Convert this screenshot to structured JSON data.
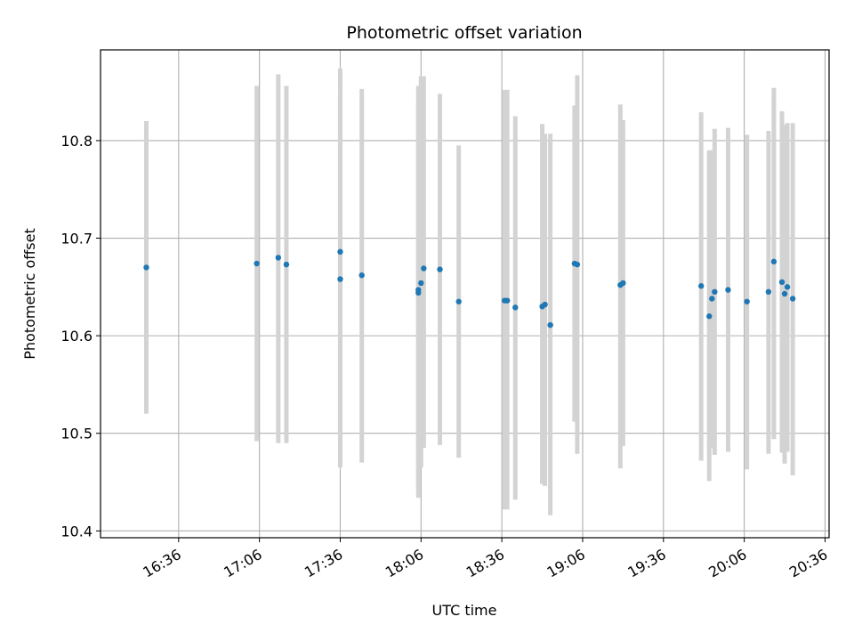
{
  "chart_data": {
    "type": "scatter",
    "title": "Photometric offset variation",
    "xlabel": "UTC time",
    "ylabel": "Photometric offset",
    "x_ticks": [
      "16:36",
      "17:06",
      "17:36",
      "18:06",
      "18:36",
      "19:06",
      "19:36",
      "20:06",
      "20:36"
    ],
    "x_tick_minutes": [
      996,
      1026,
      1056,
      1086,
      1116,
      1146,
      1176,
      1206,
      1236
    ],
    "xlim_minutes": [
      967,
      1237.5
    ],
    "y_ticks": [
      "10.4",
      "10.5",
      "10.6",
      "10.7",
      "10.8"
    ],
    "y_tick_values": [
      10.4,
      10.5,
      10.6,
      10.7,
      10.8
    ],
    "ylim": [
      10.393,
      10.893
    ],
    "grid": true,
    "marker_color": "#1f77b4",
    "errorbar_color": "#d3d3d3",
    "series": [
      {
        "x": [
          "16:24",
          "17:05",
          "17:13",
          "17:16",
          "17:36",
          "17:36",
          "17:44",
          "18:05",
          "18:05",
          "18:06",
          "18:07",
          "18:13",
          "18:20",
          "18:37",
          "18:38",
          "18:41",
          "18:51",
          "18:52",
          "18:54",
          "19:03",
          "19:04",
          "19:20",
          "19:21",
          "19:50",
          "19:53",
          "19:54",
          "19:55",
          "20:00",
          "20:07",
          "20:15",
          "20:17",
          "20:20",
          "20:21",
          "20:22",
          "20:24"
        ],
        "y": [
          10.67,
          10.674,
          10.68,
          10.673,
          10.658,
          10.686,
          10.662,
          10.644,
          10.647,
          10.654,
          10.669,
          10.668,
          10.635,
          10.636,
          10.636,
          10.629,
          10.63,
          10.632,
          10.611,
          10.674,
          10.673,
          10.652,
          10.654,
          10.651,
          10.62,
          10.638,
          10.645,
          10.647,
          10.635,
          10.645,
          10.676,
          10.655,
          10.643,
          10.65,
          10.638
        ],
        "yerr_low": [
          10.52,
          10.492,
          10.49,
          10.49,
          10.465,
          10.497,
          10.47,
          10.434,
          10.441,
          10.465,
          10.485,
          10.488,
          10.475,
          10.422,
          10.422,
          10.432,
          10.448,
          10.446,
          10.416,
          10.512,
          10.479,
          10.464,
          10.487,
          10.472,
          10.451,
          10.485,
          10.478,
          10.481,
          10.463,
          10.479,
          10.494,
          10.48,
          10.469,
          10.481,
          10.457
        ],
        "yerr_high": [
          10.82,
          10.856,
          10.868,
          10.856,
          10.85,
          10.874,
          10.853,
          10.856,
          10.842,
          10.866,
          10.866,
          10.848,
          10.795,
          10.852,
          10.852,
          10.825,
          10.817,
          10.807,
          10.807,
          10.836,
          10.867,
          10.837,
          10.821,
          10.829,
          10.79,
          10.79,
          10.812,
          10.813,
          10.806,
          10.81,
          10.854,
          10.83,
          10.816,
          10.818,
          10.818
        ]
      }
    ]
  }
}
